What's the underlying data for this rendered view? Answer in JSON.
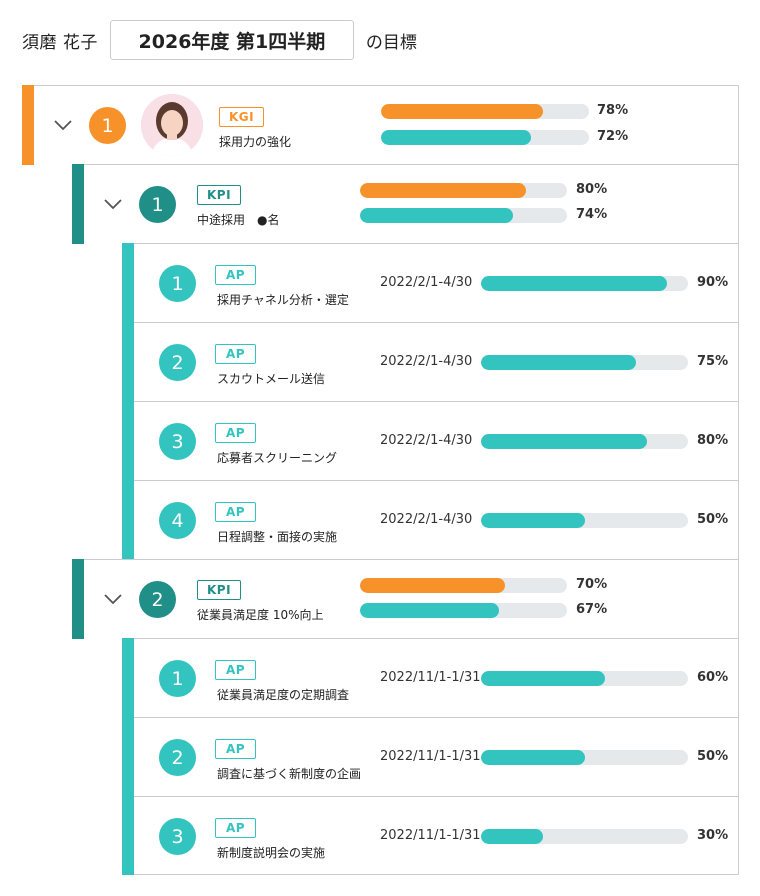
{
  "header": {
    "owner": "須磨 花子",
    "period": "2026年度 第1四半期",
    "suffix": "の目標"
  },
  "colors": {
    "kgi_accent": "#f7922a",
    "kpi_accent": "#1f8f87",
    "ap_accent": "#33c4c0",
    "track": "#e5e9ec"
  },
  "kgi": {
    "number": "1",
    "tag": "KGI",
    "name": "採用力の強化",
    "progress": [
      {
        "color": "orange",
        "value": 78,
        "label": "78%"
      },
      {
        "color": "teal",
        "value": 72,
        "label": "72%"
      }
    ]
  },
  "kpis": [
    {
      "number": "1",
      "tag": "KPI",
      "name": "中途採用　●名",
      "progress": [
        {
          "color": "orange",
          "value": 80,
          "label": "80%"
        },
        {
          "color": "teal",
          "value": 74,
          "label": "74%"
        }
      ],
      "aps": [
        {
          "number": "1",
          "tag": "AP",
          "name": "採用チャネル分析・選定",
          "date": "2022/2/1-4/30",
          "value": 90,
          "label": "90%"
        },
        {
          "number": "2",
          "tag": "AP",
          "name": "スカウトメール送信",
          "date": "2022/2/1-4/30",
          "value": 75,
          "label": "75%"
        },
        {
          "number": "3",
          "tag": "AP",
          "name": "応募者スクリーニング",
          "date": "2022/2/1-4/30",
          "value": 80,
          "label": "80%"
        },
        {
          "number": "4",
          "tag": "AP",
          "name": "日程調整・面接の実施",
          "date": "2022/2/1-4/30",
          "value": 50,
          "label": "50%"
        }
      ]
    },
    {
      "number": "2",
      "tag": "KPI",
      "name": "従業員満足度 10%向上",
      "progress": [
        {
          "color": "orange",
          "value": 70,
          "label": "70%"
        },
        {
          "color": "teal",
          "value": 67,
          "label": "67%"
        }
      ],
      "aps": [
        {
          "number": "1",
          "tag": "AP",
          "name": "従業員満足度の定期調査",
          "date": "2022/11/1-1/31",
          "value": 60,
          "label": "60%"
        },
        {
          "number": "2",
          "tag": "AP",
          "name": "調査に基づく新制度の企画",
          "date": "2022/11/1-1/31",
          "value": 50,
          "label": "50%"
        },
        {
          "number": "3",
          "tag": "AP",
          "name": "新制度説明会の実施",
          "date": "2022/11/1-1/31",
          "value": 30,
          "label": "30%"
        }
      ]
    }
  ]
}
